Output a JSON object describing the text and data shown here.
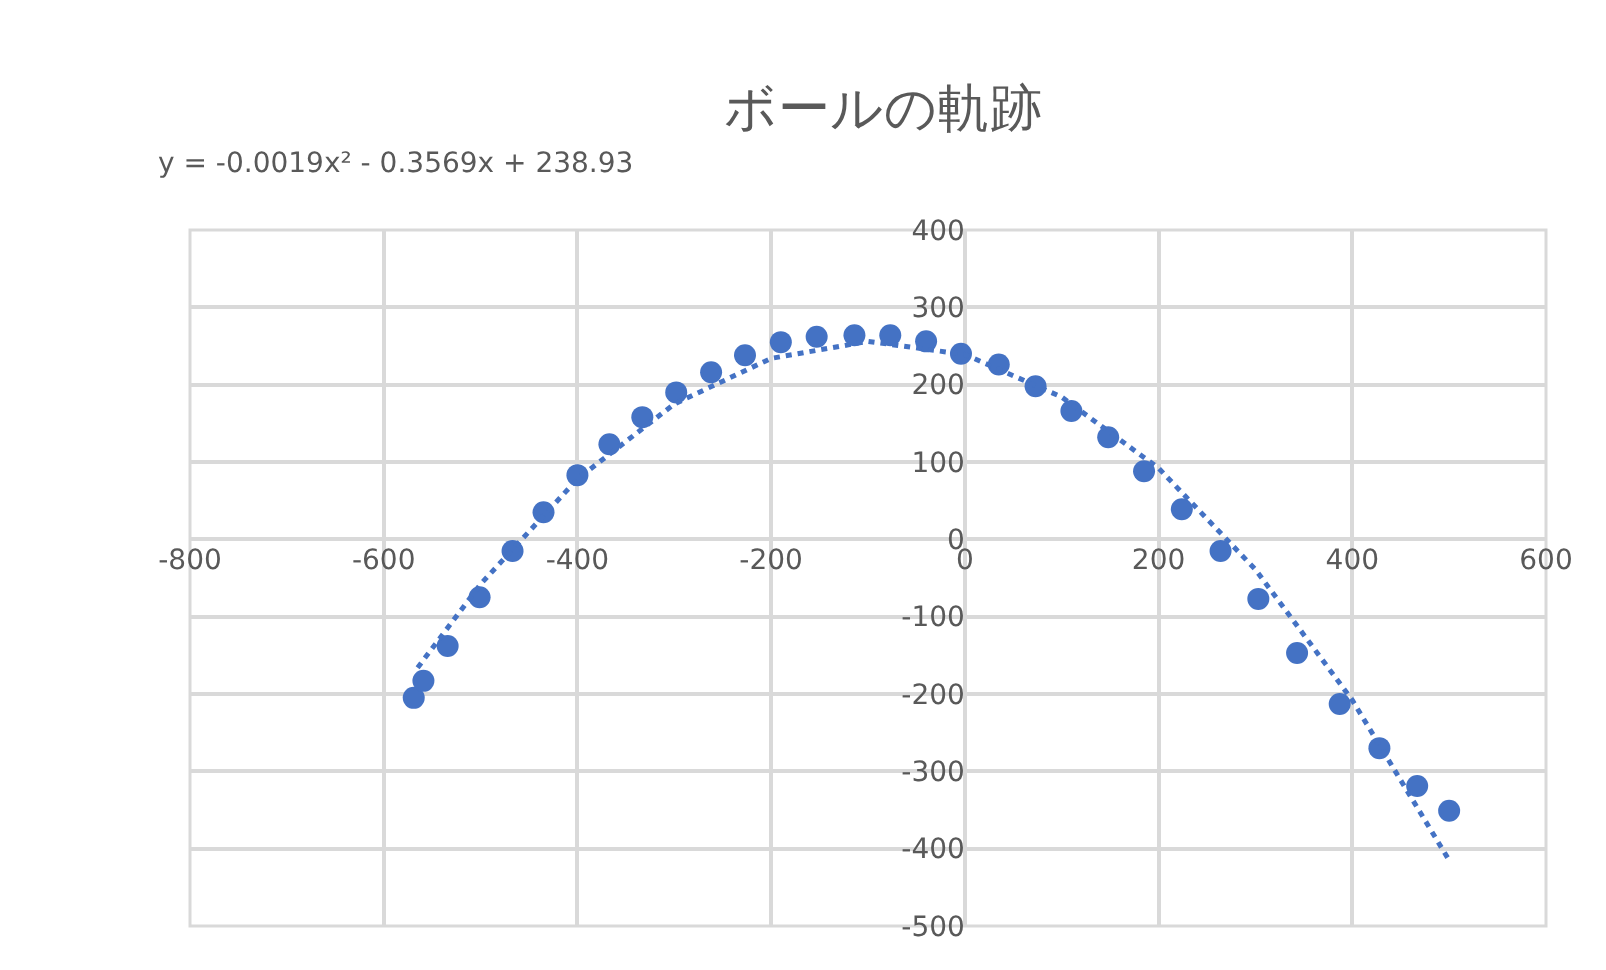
{
  "chart_data": {
    "type": "scatter",
    "title": "ボールの軌跡",
    "annotations": [
      "y = -0.0019x² - 0.3569x + 238.93"
    ],
    "xlim": [
      -800,
      600
    ],
    "xticks": [
      -800,
      -600,
      -400,
      -200,
      0,
      200,
      400,
      600
    ],
    "ylim": [
      -500,
      400
    ],
    "yticks": [
      -500,
      -400,
      -300,
      -200,
      -100,
      0,
      100,
      200,
      300,
      400
    ],
    "grid": true,
    "marker": "circle",
    "series": [
      {
        "color": "#4472c4",
        "x": [
          -569,
          -559,
          -534,
          -501,
          -467,
          -435,
          -400,
          -367,
          -333,
          -298,
          -262,
          -227,
          -190,
          -153,
          -114,
          -77,
          -40,
          -4,
          35,
          73,
          110,
          148,
          185,
          224,
          264,
          303,
          343,
          387,
          428,
          467,
          500
        ],
        "values": [
          -205,
          -183,
          -138,
          -75,
          -15,
          35,
          83,
          123,
          158,
          190,
          216,
          238,
          255,
          262,
          264,
          264,
          256,
          240,
          226,
          198,
          166,
          132,
          88,
          39,
          -15,
          -77,
          -147,
          -213,
          -270,
          -319,
          -351
        ]
      },
      {
        "type": "line",
        "color": "#4472c4",
        "line_style": "dotted",
        "marker": "none",
        "x": [
          -565,
          -500,
          -400,
          -300,
          -200,
          -100,
          0,
          100,
          200,
          300,
          400,
          500
        ],
        "values": [
          -166,
          -58,
          78,
          175,
          234,
          256,
          239,
          184,
          92,
          -39,
          -208,
          -415
        ]
      }
    ]
  }
}
